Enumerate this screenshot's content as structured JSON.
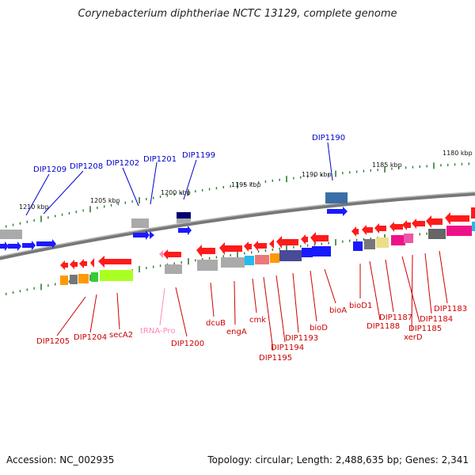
{
  "title": "Corynebacterium diphtheriae NCTC 13129, complete genome",
  "accession": "Accession: NC_002935",
  "summary": "Topology: circular; Length: 2,488,635 bp; Genes: 2,341",
  "colors": {
    "forward_label": "#0000cc",
    "reverse_label": "#cc0000",
    "trna_label": "#ff88bb",
    "backbone": "#888888",
    "tick": "#2e7d32"
  },
  "scale_ticks": [
    "1210 kbp",
    "1205 kbp",
    "1200 kbp",
    "1195 kbp",
    "1190 kbp",
    "1185 kbp",
    "1180 kbp"
  ],
  "forward_labels": [
    "DIP1209",
    "DIP1208",
    "DIP1202",
    "DIP1201",
    "DIP1199",
    "DIP1190"
  ],
  "reverse_labels": [
    "DIP1205",
    "DIP1204",
    "secA2",
    "tRNA-Pro",
    "DIP1200",
    "dcuB",
    "engA",
    "cmk",
    "DIP1195",
    "DIP1194",
    "DIP1193",
    "bioD",
    "bioA",
    "bioD1",
    "DIP1188",
    "DIP1187",
    "DIP1185",
    "xerD",
    "DIP1184",
    "DIP1183"
  ]
}
